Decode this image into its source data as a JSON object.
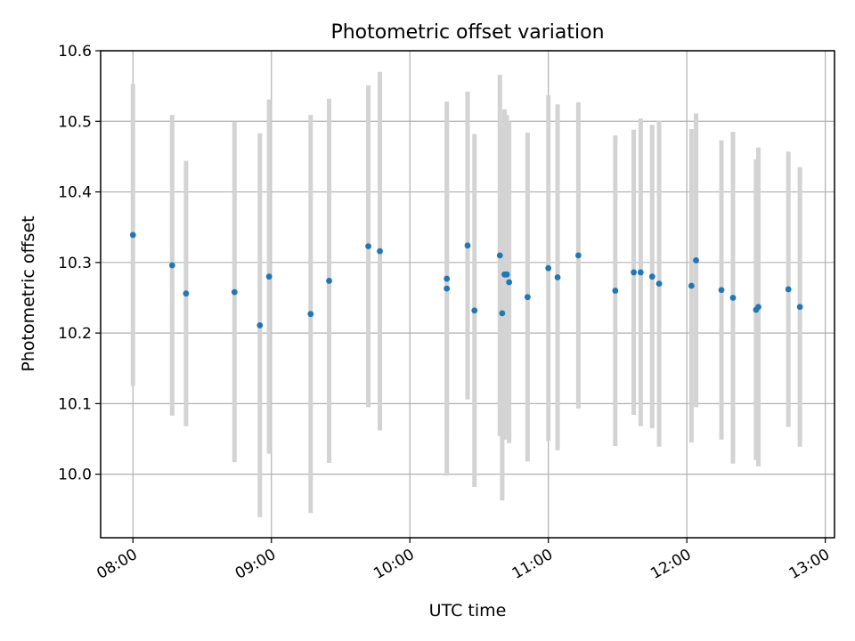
{
  "chart_data": {
    "type": "scatter",
    "title": "Photometric offset variation",
    "xlabel": "UTC time",
    "ylabel": "Photometric offset",
    "xlim": [
      "07:46",
      "13:04"
    ],
    "ylim": [
      9.91,
      10.6
    ],
    "x_ticks": [
      "08:00",
      "09:00",
      "10:00",
      "11:00",
      "12:00",
      "13:00"
    ],
    "y_ticks": [
      "10.0",
      "10.1",
      "10.2",
      "10.3",
      "10.4",
      "10.5",
      "10.6"
    ],
    "grid": true,
    "colors": {
      "points": "#1f77b4",
      "errorbars": "#d3d3d3",
      "grid": "#b0b0b0"
    },
    "points": [
      {
        "x": "08:00",
        "y": 10.339,
        "yerr": 0.214
      },
      {
        "x": "08:17",
        "y": 10.296,
        "yerr": 0.213
      },
      {
        "x": "08:23",
        "y": 10.256,
        "yerr": 0.188
      },
      {
        "x": "08:44",
        "y": 10.258,
        "yerr": 0.241
      },
      {
        "x": "08:55",
        "y": 10.211,
        "yerr": 0.272
      },
      {
        "x": "08:59",
        "y": 10.28,
        "yerr": 0.251
      },
      {
        "x": "09:17",
        "y": 10.227,
        "yerr": 0.282
      },
      {
        "x": "09:25",
        "y": 10.274,
        "yerr": 0.258
      },
      {
        "x": "09:42",
        "y": 10.323,
        "yerr": 0.228
      },
      {
        "x": "09:47",
        "y": 10.316,
        "yerr": 0.254
      },
      {
        "x": "10:16",
        "y": 10.277,
        "yerr": 0.226
      },
      {
        "x": "10:16",
        "y": 10.263,
        "yerr": 0.265
      },
      {
        "x": "10:25",
        "y": 10.324,
        "yerr": 0.218
      },
      {
        "x": "10:28",
        "y": 10.232,
        "yerr": 0.25
      },
      {
        "x": "10:39",
        "y": 10.31,
        "yerr": 0.256
      },
      {
        "x": "10:40",
        "y": 10.228,
        "yerr": 0.265
      },
      {
        "x": "10:41",
        "y": 10.283,
        "yerr": 0.234
      },
      {
        "x": "10:42",
        "y": 10.283,
        "yerr": 0.226
      },
      {
        "x": "10:43",
        "y": 10.272,
        "yerr": 0.228
      },
      {
        "x": "10:51",
        "y": 10.251,
        "yerr": 0.233
      },
      {
        "x": "11:00",
        "y": 10.292,
        "yerr": 0.245
      },
      {
        "x": "11:04",
        "y": 10.279,
        "yerr": 0.245
      },
      {
        "x": "11:13",
        "y": 10.31,
        "yerr": 0.217
      },
      {
        "x": "11:29",
        "y": 10.26,
        "yerr": 0.22
      },
      {
        "x": "11:37",
        "y": 10.286,
        "yerr": 0.202
      },
      {
        "x": "11:40",
        "y": 10.286,
        "yerr": 0.218
      },
      {
        "x": "11:45",
        "y": 10.28,
        "yerr": 0.215
      },
      {
        "x": "11:48",
        "y": 10.27,
        "yerr": 0.231
      },
      {
        "x": "12:02",
        "y": 10.267,
        "yerr": 0.222
      },
      {
        "x": "12:04",
        "y": 10.303,
        "yerr": 0.208
      },
      {
        "x": "12:15",
        "y": 10.261,
        "yerr": 0.212
      },
      {
        "x": "12:20",
        "y": 10.25,
        "yerr": 0.235
      },
      {
        "x": "12:30",
        "y": 10.233,
        "yerr": 0.213
      },
      {
        "x": "12:31",
        "y": 10.237,
        "yerr": 0.226
      },
      {
        "x": "12:44",
        "y": 10.262,
        "yerr": 0.195
      },
      {
        "x": "12:49",
        "y": 10.237,
        "yerr": 0.198
      }
    ]
  }
}
